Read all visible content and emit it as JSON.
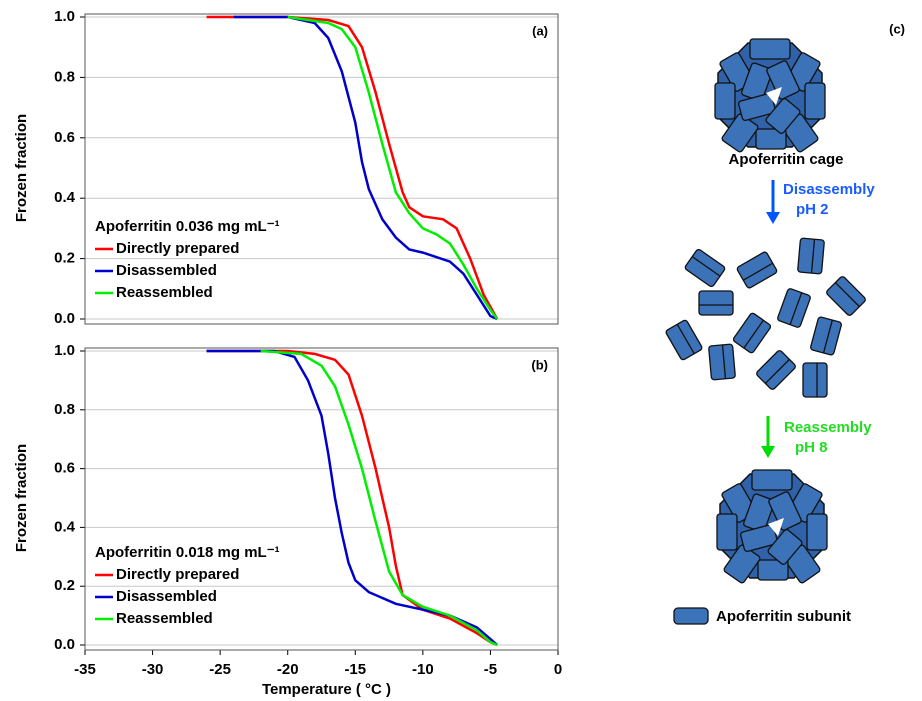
{
  "chart_data": [
    {
      "type": "line",
      "label": "(a)",
      "legend_title": "Apoferritin 0.036 mg mL⁻¹",
      "legend": "lower left",
      "grid": true,
      "ylabel": "Frozen fraction",
      "xlim": [
        -35,
        0
      ],
      "ylim": [
        0,
        1
      ],
      "yticks": [
        {
          "value": 0,
          "label": "0.0"
        },
        0.2,
        0.4,
        0.6,
        0.8,
        {
          "value": 1,
          "label": "1.0"
        }
      ],
      "series": [
        {
          "name": "Directly prepared",
          "color": "#ff0000",
          "x": [
            -26,
            -20,
            -17,
            -15.5,
            -14.5,
            -13.5,
            -12.5,
            -11.5,
            -11,
            -10,
            -8.5,
            -7.5,
            -6.5,
            -5.5,
            -4.5
          ],
          "values": [
            1.0,
            1.0,
            0.99,
            0.97,
            0.9,
            0.75,
            0.58,
            0.42,
            0.37,
            0.34,
            0.33,
            0.3,
            0.2,
            0.08,
            0
          ]
        },
        {
          "name": "Disassembled",
          "color": "#0000cc",
          "x": [
            -24,
            -20,
            -18,
            -17,
            -16,
            -15,
            -14.5,
            -14,
            -13,
            -12,
            -11,
            -10,
            -8,
            -7,
            -6,
            -5,
            -4.5
          ],
          "values": [
            1.0,
            1.0,
            0.98,
            0.93,
            0.82,
            0.65,
            0.52,
            0.43,
            0.33,
            0.27,
            0.23,
            0.22,
            0.19,
            0.15,
            0.08,
            0.01,
            0
          ]
        },
        {
          "name": "Reassembled",
          "color": "#00ee00",
          "x": [
            -20,
            -17,
            -16,
            -15,
            -14,
            -13,
            -12,
            -11,
            -10,
            -9,
            -8,
            -7,
            -6,
            -5,
            -4.5
          ],
          "values": [
            1.0,
            0.98,
            0.96,
            0.9,
            0.75,
            0.58,
            0.42,
            0.35,
            0.3,
            0.28,
            0.25,
            0.18,
            0.1,
            0.03,
            0
          ]
        }
      ]
    },
    {
      "type": "line",
      "label": "(b)",
      "legend_title": "Apoferritin 0.018 mg mL⁻¹",
      "legend": "lower left",
      "grid": true,
      "ylabel": "Frozen fraction",
      "xlabel": "Temperature ( °C )",
      "xlim": [
        -35,
        0
      ],
      "xticks": [
        -35,
        -30,
        -25,
        -20,
        -15,
        -10,
        -5,
        0
      ],
      "ylim": [
        0,
        1
      ],
      "yticks": [
        {
          "value": 0,
          "label": "0.0"
        },
        0.2,
        0.4,
        0.6,
        0.8,
        {
          "value": 1,
          "label": "1.0"
        }
      ],
      "series": [
        {
          "name": "Directly prepared",
          "color": "#ff0000",
          "x": [
            -26,
            -20,
            -18,
            -16.5,
            -15.5,
            -14.5,
            -13.5,
            -13,
            -12.5,
            -12,
            -11.5,
            -10,
            -8,
            -6,
            -5,
            -4.5
          ],
          "values": [
            1.0,
            1.0,
            0.99,
            0.97,
            0.92,
            0.78,
            0.6,
            0.5,
            0.4,
            0.27,
            0.17,
            0.12,
            0.09,
            0.04,
            0.01,
            0
          ]
        },
        {
          "name": "Disassembled",
          "color": "#0000cc",
          "x": [
            -26,
            -21,
            -19.5,
            -18.5,
            -17.5,
            -17,
            -16.5,
            -16,
            -15.5,
            -15,
            -14,
            -12,
            -10,
            -8,
            -6,
            -5,
            -4.5
          ],
          "values": [
            1.0,
            1.0,
            0.98,
            0.9,
            0.78,
            0.65,
            0.5,
            0.38,
            0.28,
            0.22,
            0.18,
            0.14,
            0.12,
            0.1,
            0.06,
            0.02,
            0
          ]
        },
        {
          "name": "Reassembled",
          "color": "#00ee00",
          "x": [
            -22,
            -19,
            -17.5,
            -16.5,
            -15.5,
            -14.5,
            -13.5,
            -12.5,
            -11.5,
            -10,
            -8,
            -6,
            -5,
            -4.5
          ],
          "values": [
            1.0,
            0.99,
            0.95,
            0.88,
            0.75,
            0.6,
            0.42,
            0.25,
            0.17,
            0.13,
            0.1,
            0.05,
            0.01,
            0
          ]
        }
      ]
    }
  ],
  "diagram": {
    "label": "(c)",
    "cage_label": "Apoferritin  cage",
    "step1": "Disassembly",
    "step1_ph": "pH 2",
    "step2": "Reassembly",
    "step2_ph": "pH 8",
    "legend": "Apoferritin subunit"
  }
}
